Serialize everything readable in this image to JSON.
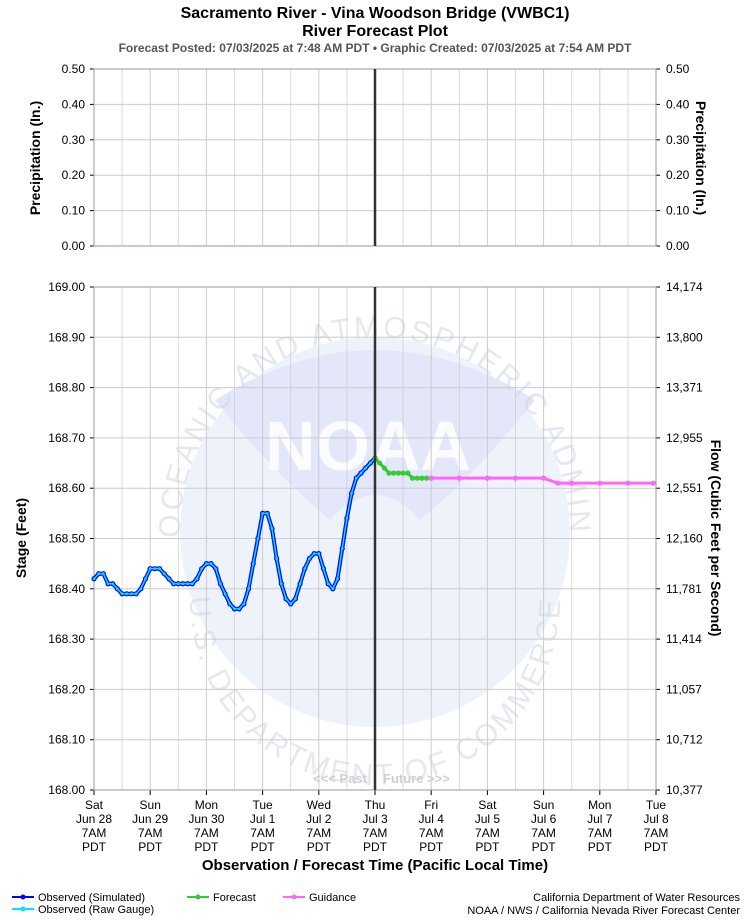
{
  "header": {
    "title_line1": "Sacramento River - Vina Woodson Bridge (VWBC1)",
    "title_line2": "River Forecast Plot",
    "subtitle": "Forecast Posted: 07/03/2025 at 7:48 AM PDT  •  Graphic Created: 07/03/2025 at 7:54 AM PDT"
  },
  "watermark": {
    "logo_text": "NOAA",
    "ring_top": "NATIONAL OCEANIC AND ATMOSPHERIC ADMINISTRATION",
    "ring_bottom": "U.S. DEPARTMENT OF COMMERCE"
  },
  "markers": {
    "past": "<<< Past",
    "future": "Future >>>"
  },
  "legend": {
    "observed_simulated": "Observed (Simulated)",
    "observed_raw": "Observed (Raw Gauge)",
    "forecast": "Forecast",
    "guidance": "Guidance"
  },
  "credits": {
    "line1": "California Department of Water Resources",
    "line2": "NOAA / NWS / California Nevada River Forecast Center"
  },
  "colors": {
    "observed_simulated": "#0000ff",
    "observed_raw": "#00e5ff",
    "forecast": "#33cc33",
    "guidance": "#ff66ff",
    "precip": "#aab0ff",
    "now_line": "#333333",
    "grid": "#cccccc"
  },
  "chart_data": [
    {
      "type": "line",
      "panel": "precipitation",
      "ylabel_left": "Precipitation (In.)",
      "ylabel_right": "Precipitation (In.)",
      "ylim": [
        0,
        0.5
      ],
      "yticks": [
        "0.00",
        "0.10",
        "0.20",
        "0.30",
        "0.40",
        "0.50"
      ],
      "ytick_values": [
        0,
        0.1,
        0.2,
        0.3,
        0.4,
        0.5
      ],
      "series": [
        {
          "values_x_days": [
            0,
            5
          ],
          "values": [
            0,
            0
          ]
        }
      ]
    },
    {
      "type": "line",
      "panel": "stage",
      "xlabel": "Observation / Forecast Time (Pacific Local Time)",
      "ylabel_left": "Stage (Feet)",
      "ylabel_right": "Flow (Cubic Feet per Second)",
      "ylim": [
        168.0,
        169.0
      ],
      "yticks": [
        "168.00",
        "168.10",
        "168.20",
        "168.30",
        "168.40",
        "168.50",
        "168.60",
        "168.70",
        "168.80",
        "168.90",
        "169.00"
      ],
      "ytick_values": [
        168.0,
        168.1,
        168.2,
        168.3,
        168.4,
        168.5,
        168.6,
        168.7,
        168.8,
        168.9,
        169.0
      ],
      "yticks_right": [
        "10,377",
        "10,712",
        "11,057",
        "11,414",
        "11,781",
        "12,160",
        "12,551",
        "12,955",
        "13,371",
        "13,800",
        "14,174"
      ],
      "x_ticks": [
        {
          "day": "Sat",
          "date": "Jun 28",
          "time": "7AM",
          "tz": "PDT"
        },
        {
          "day": "Sun",
          "date": "Jun 29",
          "time": "7AM",
          "tz": "PDT"
        },
        {
          "day": "Mon",
          "date": "Jun 30",
          "time": "7AM",
          "tz": "PDT"
        },
        {
          "day": "Tue",
          "date": "Jul 1",
          "time": "7AM",
          "tz": "PDT"
        },
        {
          "day": "Wed",
          "date": "Jul 2",
          "time": "7AM",
          "tz": "PDT"
        },
        {
          "day": "Thu",
          "date": "Jul 3",
          "time": "7AM",
          "tz": "PDT"
        },
        {
          "day": "Fri",
          "date": "Jul 4",
          "time": "7AM",
          "tz": "PDT"
        },
        {
          "day": "Sat",
          "date": "Jul 5",
          "time": "7AM",
          "tz": "PDT"
        },
        {
          "day": "Sun",
          "date": "Jul 6",
          "time": "7AM",
          "tz": "PDT"
        },
        {
          "day": "Mon",
          "date": "Jul 7",
          "time": "7AM",
          "tz": "PDT"
        },
        {
          "day": "Tue",
          "date": "Jul 8",
          "time": "7AM",
          "tz": "PDT"
        }
      ],
      "now_x_day": 5,
      "series": [
        {
          "name": "Observed (Simulated)",
          "x_days": [
            0,
            0.083,
            0.167,
            0.25,
            0.333,
            0.417,
            0.5,
            0.583,
            0.667,
            0.75,
            0.833,
            0.917,
            1.0,
            1.083,
            1.167,
            1.25,
            1.333,
            1.417,
            1.5,
            1.583,
            1.667,
            1.75,
            1.833,
            1.917,
            2.0,
            2.083,
            2.167,
            2.25,
            2.333,
            2.417,
            2.5,
            2.583,
            2.667,
            2.75,
            2.833,
            2.917,
            3.0,
            3.083,
            3.167,
            3.25,
            3.333,
            3.417,
            3.5,
            3.583,
            3.667,
            3.75,
            3.833,
            3.917,
            4.0,
            4.083,
            4.167,
            4.25,
            4.333,
            4.417,
            4.5,
            4.583,
            4.667,
            4.75,
            4.833,
            4.917,
            5.0
          ],
          "values": [
            168.42,
            168.43,
            168.43,
            168.41,
            168.41,
            168.4,
            168.39,
            168.39,
            168.39,
            168.39,
            168.4,
            168.42,
            168.44,
            168.44,
            168.44,
            168.43,
            168.42,
            168.41,
            168.41,
            168.41,
            168.41,
            168.41,
            168.42,
            168.44,
            168.45,
            168.45,
            168.44,
            168.41,
            168.39,
            168.37,
            168.36,
            168.36,
            168.37,
            168.4,
            168.45,
            168.5,
            168.55,
            168.55,
            168.52,
            168.46,
            168.41,
            168.38,
            168.37,
            168.38,
            168.41,
            168.44,
            168.46,
            168.47,
            168.47,
            168.44,
            168.41,
            168.4,
            168.42,
            168.48,
            168.54,
            168.59,
            168.62,
            168.63,
            168.64,
            168.65,
            168.66
          ]
        },
        {
          "name": "Observed (Raw Gauge)",
          "x_days": [
            0,
            0.083,
            0.167,
            0.25,
            0.333,
            0.417,
            0.5,
            0.583,
            0.667,
            0.75,
            0.833,
            0.917,
            1.0,
            1.083,
            1.167,
            1.25,
            1.333,
            1.417,
            1.5,
            1.583,
            1.667,
            1.75,
            1.833,
            1.917,
            2.0,
            2.083,
            2.167,
            2.25,
            2.333,
            2.417,
            2.5,
            2.583,
            2.667,
            2.75,
            2.833,
            2.917,
            3.0,
            3.083,
            3.167,
            3.25,
            3.333,
            3.417,
            3.5,
            3.583,
            3.667,
            3.75,
            3.833,
            3.917,
            4.0,
            4.083,
            4.167,
            4.25,
            4.333,
            4.417,
            4.5,
            4.583,
            4.667,
            4.75,
            4.833,
            4.917,
            5.0
          ],
          "values": [
            168.42,
            168.43,
            168.43,
            168.41,
            168.41,
            168.4,
            168.39,
            168.39,
            168.39,
            168.39,
            168.4,
            168.42,
            168.44,
            168.44,
            168.44,
            168.43,
            168.42,
            168.41,
            168.41,
            168.41,
            168.41,
            168.41,
            168.42,
            168.44,
            168.45,
            168.45,
            168.44,
            168.41,
            168.39,
            168.37,
            168.36,
            168.36,
            168.37,
            168.4,
            168.45,
            168.5,
            168.55,
            168.55,
            168.52,
            168.46,
            168.41,
            168.38,
            168.37,
            168.38,
            168.41,
            168.44,
            168.46,
            168.47,
            168.47,
            168.44,
            168.41,
            168.4,
            168.42,
            168.48,
            168.54,
            168.59,
            168.62,
            168.63,
            168.64,
            168.65,
            168.66
          ]
        },
        {
          "name": "Forecast",
          "x_days": [
            5.0,
            5.083,
            5.167,
            5.25,
            5.333,
            5.417,
            5.5,
            5.583,
            5.667,
            5.75,
            5.833,
            5.917,
            6.0
          ],
          "values": [
            168.66,
            168.65,
            168.64,
            168.63,
            168.63,
            168.63,
            168.63,
            168.63,
            168.62,
            168.62,
            168.62,
            168.62,
            168.62
          ]
        },
        {
          "name": "Guidance",
          "x_days": [
            6.0,
            6.5,
            7.0,
            7.5,
            8.0,
            8.25,
            8.5,
            9.0,
            9.5,
            9.95
          ],
          "values": [
            168.62,
            168.62,
            168.62,
            168.62,
            168.62,
            168.61,
            168.61,
            168.61,
            168.61,
            168.61
          ]
        }
      ]
    }
  ]
}
